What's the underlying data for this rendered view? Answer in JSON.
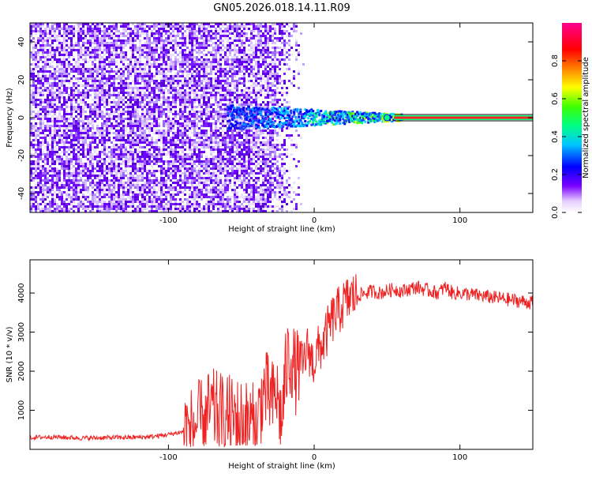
{
  "title": "GN05.2026.018.14.11.R09",
  "chart_data": [
    {
      "type": "heatmap",
      "xlabel": "Height of straight line (km)",
      "ylabel": "Frequency (Hz)",
      "xlim": [
        -195,
        150
      ],
      "ylim": [
        -50,
        50
      ],
      "xticks": [
        -100,
        0,
        100
      ],
      "xtick_labels": [
        "-100",
        "0",
        "100"
      ],
      "yticks": [
        -40,
        -20,
        0,
        20,
        40
      ],
      "ytick_labels": [
        "-40",
        "-20",
        "0",
        "20",
        "40"
      ],
      "noise_region_km": [
        -195,
        -32
      ],
      "tone_frequency_hz": 0,
      "colorbar": {
        "label": "Normalized spectral amplitude",
        "range": [
          0,
          1
        ],
        "ticks": [
          0.0,
          0.2,
          0.4,
          0.6,
          0.8
        ],
        "tick_labels": [
          "0.0",
          "0.2",
          "0.4",
          "0.6",
          "0.8"
        ],
        "colors": [
          "#ffffff",
          "#6e00ff",
          "#0000ff",
          "#00c8ff",
          "#00ff00",
          "#ffff00",
          "#ff8000",
          "#ff0000",
          "#ff00a0"
        ]
      }
    },
    {
      "type": "line",
      "xlabel": "Height of straight line (km)",
      "ylabel": "SNR (10 * v/v)",
      "xlim": [
        -195,
        150
      ],
      "ylim": [
        0,
        4850
      ],
      "xticks": [
        -100,
        0,
        100
      ],
      "xtick_labels": [
        "-100",
        "0",
        "100"
      ],
      "yticks": [
        1000,
        2000,
        3000,
        4000
      ],
      "ytick_labels": [
        "1000",
        "2000",
        "3000",
        "4000"
      ],
      "series": [
        {
          "name": "SNR",
          "color": "#ee2222",
          "x": [
            -195,
            -180,
            -160,
            -140,
            -120,
            -110,
            -100,
            -90,
            -85,
            -80,
            -75,
            -70,
            -65,
            -60,
            -55,
            -50,
            -45,
            -40,
            -38,
            -36,
            -34,
            -32,
            -30,
            -28,
            -26,
            -24,
            -22,
            -20,
            -18,
            -16,
            -14,
            -12,
            -10,
            -8,
            -6,
            -4,
            -2,
            0,
            2,
            4,
            6,
            8,
            10,
            12,
            14,
            16,
            18,
            20,
            25,
            30,
            35,
            40,
            45,
            50,
            55,
            60,
            65,
            70,
            75,
            80,
            85,
            90,
            95,
            100,
            110,
            120,
            130,
            140,
            150
          ],
          "y": [
            300,
            320,
            290,
            300,
            310,
            330,
            380,
            450,
            550,
            650,
            850,
            1000,
            900,
            850,
            800,
            750,
            700,
            600,
            900,
            1300,
            1500,
            1400,
            1300,
            1200,
            1500,
            1000,
            800,
            1800,
            2300,
            2400,
            2100,
            1900,
            2300,
            2100,
            2400,
            2600,
            2300,
            2200,
            2500,
            2600,
            2700,
            2900,
            3100,
            3300,
            3400,
            3500,
            3600,
            3700,
            3900,
            3950,
            4000,
            4050,
            4000,
            4050,
            4100,
            4050,
            4100,
            4150,
            4100,
            4050,
            4000,
            4150,
            4000,
            4000,
            3950,
            3900,
            3850,
            3800,
            3750
          ]
        }
      ]
    }
  ]
}
